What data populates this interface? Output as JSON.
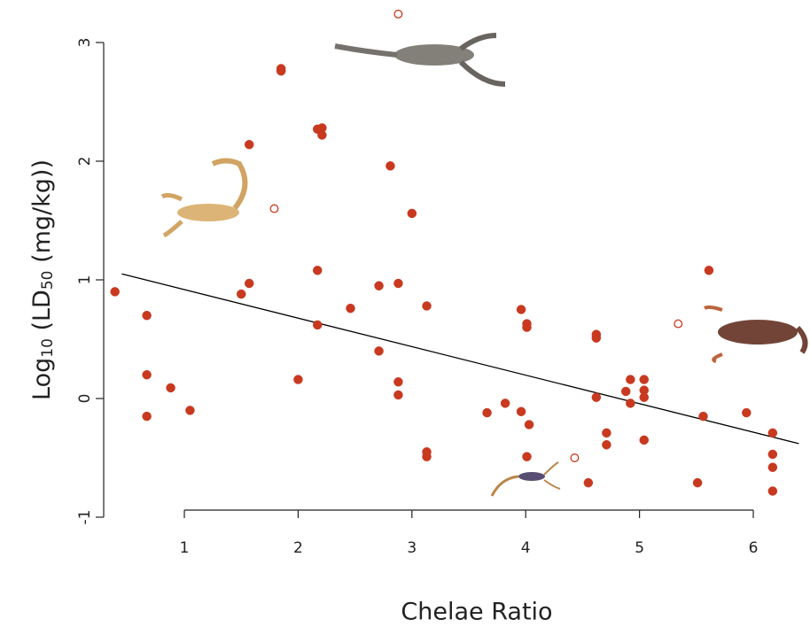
{
  "chart_data": {
    "type": "scatter",
    "xlabel": "Chelae Ratio",
    "ylabel": [
      "Log",
      "10",
      " (LD",
      "50",
      " (mg/kg))"
    ],
    "xlim": [
      0.2,
      6.45
    ],
    "ylim": [
      -1.05,
      3.35
    ],
    "xticks": [
      1,
      2,
      3,
      4,
      5,
      6
    ],
    "yticks": [
      -1,
      0,
      1,
      2,
      3
    ],
    "series": [
      {
        "color": "#c8391f",
        "filled": true,
        "x": [
          0.39,
          0.67,
          0.67,
          0.67,
          0.88,
          1.05,
          1.57,
          1.5,
          1.57,
          1.85,
          1.85,
          2.0,
          2.17,
          2.21,
          2.21,
          2.17,
          2.17,
          2.46,
          2.71,
          2.71,
          2.81,
          2.88,
          2.88,
          2.88,
          3.0,
          3.13,
          3.13,
          3.13,
          3.66,
          3.82,
          3.96,
          3.96,
          4.01,
          4.01,
          4.03,
          4.01,
          4.55,
          4.62,
          4.62,
          4.62,
          4.71,
          4.71,
          4.88,
          4.92,
          4.92,
          5.04,
          5.04,
          5.04,
          5.04,
          5.51,
          5.56,
          5.61,
          5.94,
          6.17,
          6.17,
          6.17,
          6.17
        ],
        "values": [
          0.9,
          0.7,
          0.2,
          -0.15,
          0.09,
          -0.1,
          2.14,
          0.88,
          0.97,
          2.78,
          2.76,
          0.16,
          2.27,
          2.28,
          2.22,
          1.08,
          0.62,
          0.76,
          0.95,
          0.4,
          1.96,
          0.97,
          0.14,
          0.03,
          1.56,
          0.78,
          -0.45,
          -0.49,
          -0.12,
          -0.04,
          0.75,
          -0.11,
          0.63,
          0.6,
          -0.22,
          -0.49,
          -0.71,
          0.01,
          0.54,
          0.51,
          -0.29,
          -0.39,
          0.06,
          0.16,
          -0.04,
          0.16,
          0.07,
          0.01,
          -0.35,
          -0.71,
          -0.15,
          1.08,
          -0.12,
          -0.29,
          -0.47,
          -0.58,
          -0.78
        ]
      },
      {
        "color": "#c8391f",
        "filled": false,
        "x": [
          2.88,
          1.79,
          4.43,
          5.34
        ],
        "values": [
          3.24,
          1.6,
          -0.5,
          0.63
        ]
      }
    ],
    "trend": {
      "color": "#000000",
      "x": [
        0.45,
        6.4
      ],
      "values": [
        1.05,
        -0.38
      ]
    }
  }
}
